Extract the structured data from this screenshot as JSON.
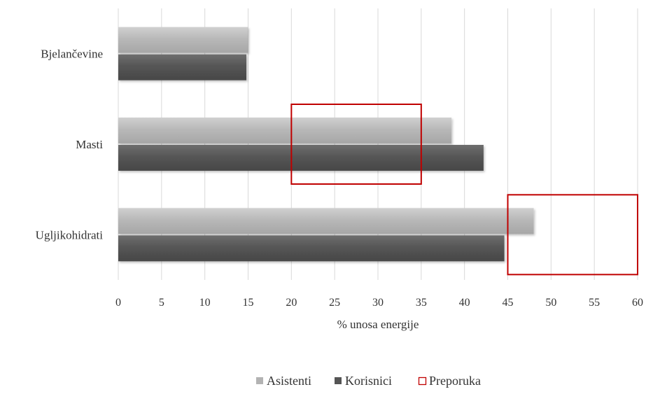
{
  "chart_data": {
    "type": "bar",
    "orientation": "horizontal",
    "categories": [
      "Bjelančevine",
      "Masti",
      "Ugljikohidrati"
    ],
    "series": [
      {
        "name": "Asistenti",
        "values": [
          15,
          38.5,
          48
        ],
        "color": "#b3b3b3"
      },
      {
        "name": "Korisnici",
        "values": [
          14.8,
          42.2,
          44.6
        ],
        "color": "#555555"
      }
    ],
    "reference_ranges": {
      "name": "Preporuka",
      "color": "#c00000",
      "ranges": [
        {
          "category": "Masti",
          "from": 20,
          "to": 35
        },
        {
          "category": "Ugljikohidrati",
          "from": 45,
          "to": 60
        }
      ]
    },
    "xlabel": "% unosa energije",
    "xlim": [
      0,
      60
    ],
    "xticks": [
      0,
      5,
      10,
      15,
      20,
      25,
      30,
      35,
      40,
      45,
      50,
      55,
      60
    ],
    "grid": "vertical",
    "legend_position": "bottom"
  }
}
